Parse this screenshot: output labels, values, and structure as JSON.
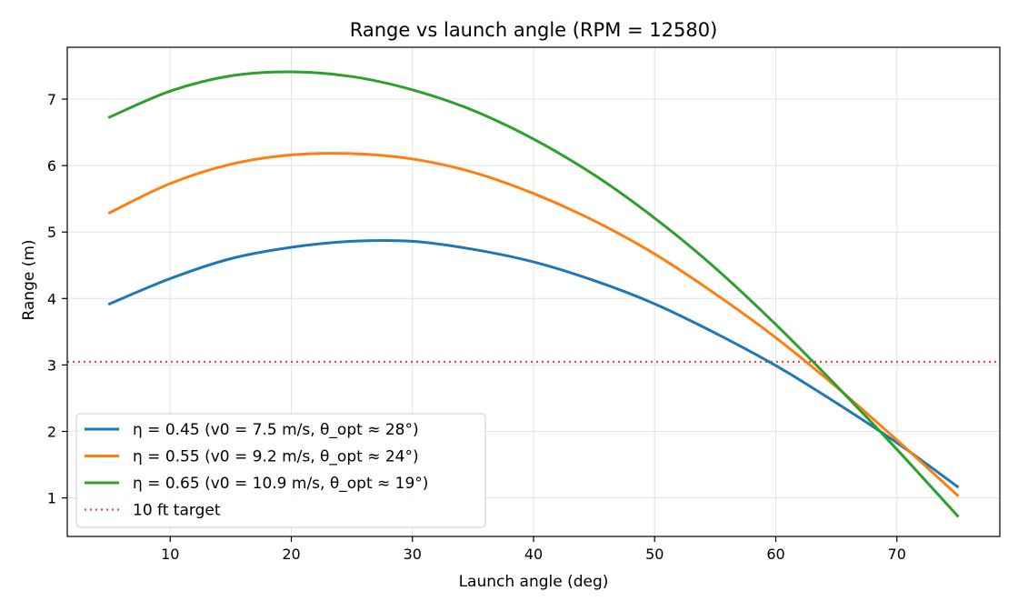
{
  "chart_data": {
    "type": "line",
    "title": "Range vs launch angle  (RPM = 12580)",
    "xlabel": "Launch angle (deg)",
    "ylabel": "Range (m)",
    "xlim": [
      1.5,
      78.5
    ],
    "ylim": [
      0.42,
      7.78
    ],
    "xticks": [
      10,
      20,
      30,
      40,
      50,
      60,
      70
    ],
    "yticks": [
      1,
      2,
      3,
      4,
      5,
      6,
      7
    ],
    "grid": true,
    "legend_position": "lower-left",
    "x": [
      5,
      10,
      15,
      20,
      25,
      30,
      35,
      40,
      45,
      50,
      55,
      60,
      65,
      70,
      75
    ],
    "series": [
      {
        "name": "η = 0.45  (v0 = 7.5 m/s, θ_opt ≈ 28°)",
        "color": "#1f77b4",
        "values": [
          3.92,
          4.3,
          4.6,
          4.77,
          4.86,
          4.86,
          4.74,
          4.55,
          4.27,
          3.92,
          3.48,
          2.99,
          2.43,
          1.83,
          1.17
        ]
      },
      {
        "name": "η = 0.55  (v0 = 9.2 m/s, θ_opt ≈ 24°)",
        "color": "#ff7f0e",
        "values": [
          5.29,
          5.73,
          6.02,
          6.16,
          6.18,
          6.1,
          5.9,
          5.58,
          5.17,
          4.67,
          4.07,
          3.41,
          2.67,
          1.87,
          1.04
        ]
      },
      {
        "name": "η = 0.65  (v0 = 10.9 m/s, θ_opt ≈ 19°)",
        "color": "#2ca02c",
        "values": [
          6.73,
          7.12,
          7.35,
          7.41,
          7.34,
          7.14,
          6.83,
          6.4,
          5.86,
          5.21,
          4.46,
          3.61,
          2.69,
          1.73,
          0.73
        ]
      }
    ],
    "reference_line": {
      "name": "10 ft target",
      "y": 3.048,
      "color": "#ff4444",
      "style": "dotted"
    }
  }
}
